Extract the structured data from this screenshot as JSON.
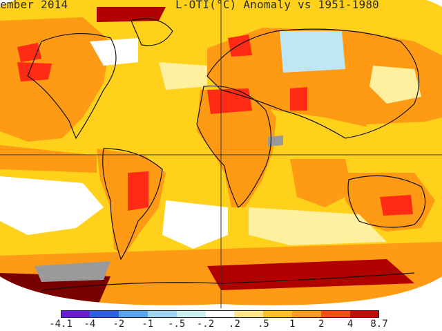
{
  "header": {
    "title_left": "ember 2014",
    "title_right": "L-OTI(°C) Anomaly vs 1951-1980"
  },
  "legend": {
    "ticks": [
      "-4.1",
      "-4",
      "-2",
      "-1",
      "-.5",
      "-.2",
      ".2",
      ".5",
      "1",
      "2",
      "4",
      "8.7"
    ],
    "colors": [
      "#6a1be0",
      "#2d5fe6",
      "#5aa3ee",
      "#9fd3f0",
      "#cdeef0",
      "#ffffff",
      "#ffe68a",
      "#ffc21a",
      "#ff9a14",
      "#ff4a14",
      "#c80808"
    ]
  },
  "map": {
    "colors": {
      "land_outline": "#111111",
      "grid_line": "#333333",
      "white": "#ffffff",
      "pale_yellow": "#fff0a0",
      "yellow": "#ffd11a",
      "orange": "#ff9a14",
      "red": "#ff2b14",
      "dark_red": "#b00000",
      "maroon": "#7a0000",
      "light_blue": "#bfe6f5",
      "blue": "#6aaae8",
      "grey": "#9a9a9a"
    }
  }
}
